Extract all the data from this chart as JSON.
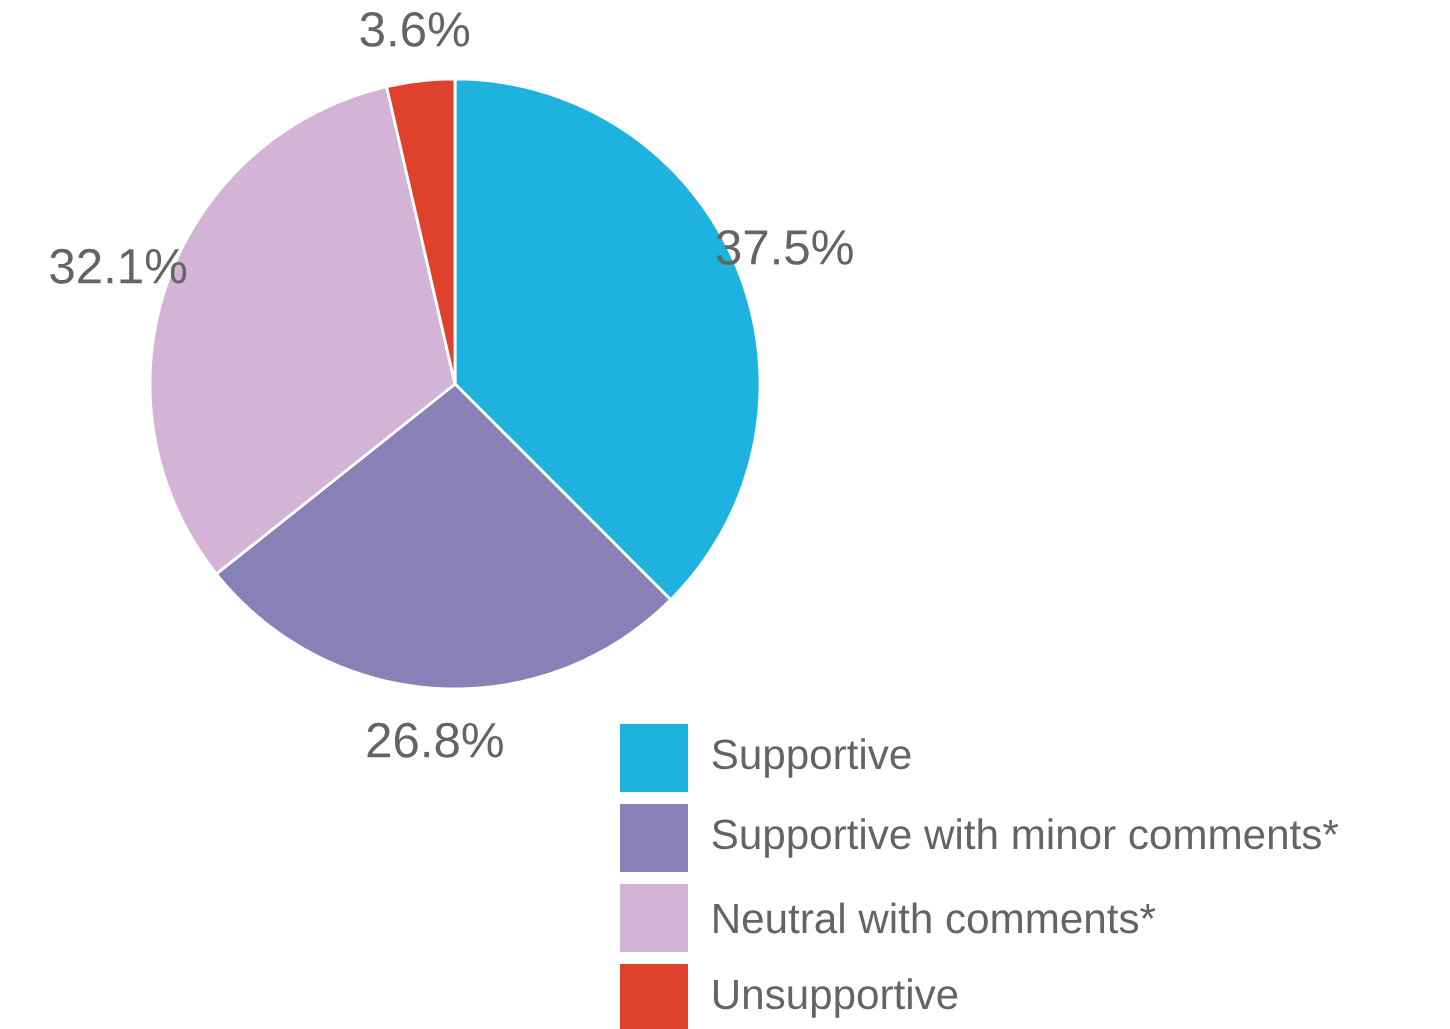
{
  "chart_data": {
    "type": "pie",
    "categories": [
      "Supportive",
      "Supportive with minor comments*",
      "Neutral with comments*",
      "Unsupportive"
    ],
    "values": [
      37.5,
      26.8,
      32.1,
      3.6
    ],
    "value_labels": [
      "37.5%",
      "26.8%",
      "32.1%",
      "3.6%"
    ],
    "colors": [
      "#1eb3de",
      "#8980b8",
      "#d3b4d6",
      "#de412c"
    ],
    "legend": "bottom right"
  }
}
